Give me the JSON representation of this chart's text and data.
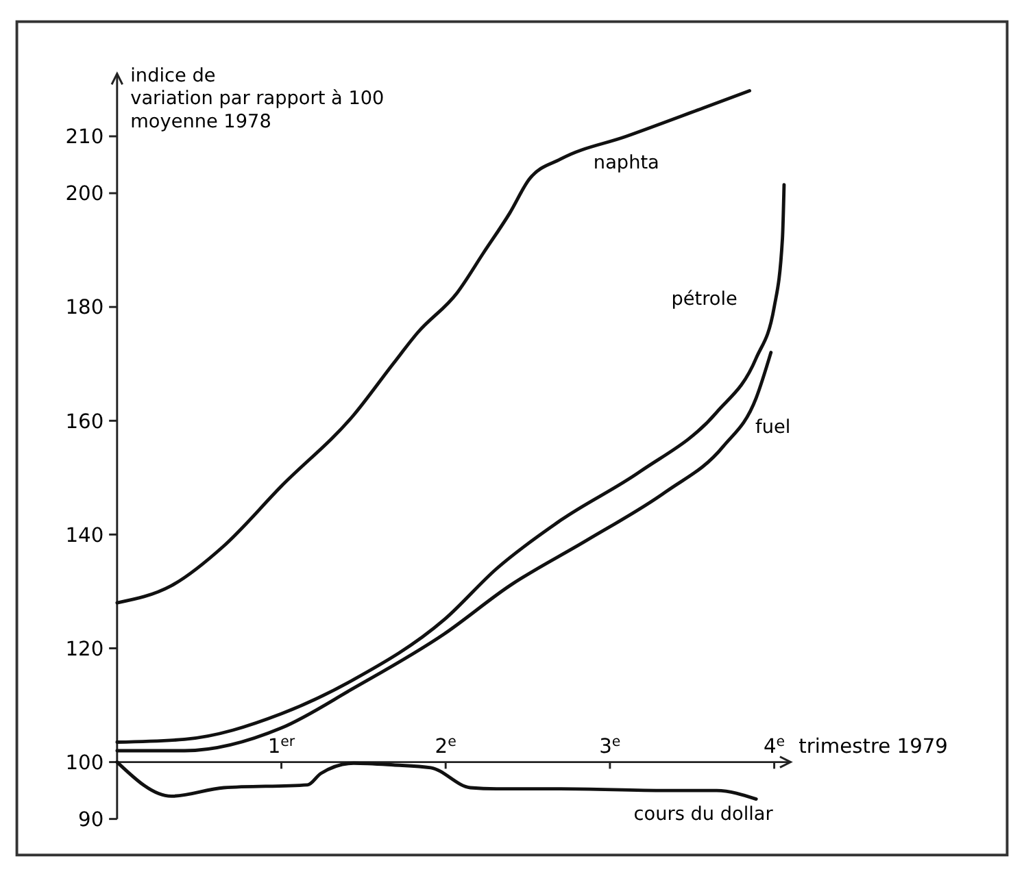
{
  "chart_data": {
    "type": "line",
    "ylabel": "indice de\nvariation par rapport à 100\nmoyenne 1978",
    "xlabel": "trimestre 1979",
    "xlim": [
      0,
      4.1
    ],
    "xticks": [
      {
        "value": 1,
        "label": "1$^{er}$"
      },
      {
        "value": 2,
        "label": "2$^{e}$"
      },
      {
        "value": 3,
        "label": "3$^{e}$"
      },
      {
        "value": 4,
        "label": "4$^{e}$"
      }
    ],
    "ylim": [
      90,
      221
    ],
    "yticks": [
      90,
      100,
      120,
      140,
      160,
      180,
      200,
      210
    ],
    "grid": false,
    "legend": false,
    "marker": "none",
    "line_style": "solid",
    "series": [
      {
        "name": "naphta",
        "color": "#111111",
        "x": [
          0,
          0.33,
          0.65,
          1.0,
          1.44,
          1.68,
          1.83,
          2.07,
          2.23,
          2.39,
          2.51,
          2.7,
          3.1,
          3.57,
          3.85
        ],
        "values": [
          128,
          131,
          138,
          148.5,
          161,
          170,
          175.5,
          182.5,
          189.5,
          196.5,
          202.5,
          206,
          210,
          215,
          218
        ]
      },
      {
        "name": "pétrole",
        "color": "#111111",
        "x": [
          0,
          0.41,
          1.0,
          1.44,
          1.99,
          2.31,
          2.7,
          3.18,
          3.65,
          3.89,
          4.0,
          4.05,
          4.06
        ],
        "values": [
          103.5,
          104,
          108.5,
          114.5,
          125,
          134,
          142.5,
          151,
          161.5,
          171,
          180,
          192,
          201.5
        ]
      },
      {
        "name": "fuel",
        "color": "#111111",
        "x": [
          0,
          0.41,
          1.0,
          1.44,
          1.99,
          2.39,
          2.86,
          3.34,
          3.69,
          3.89,
          3.98
        ],
        "values": [
          102,
          102,
          106,
          113,
          122.5,
          131,
          139,
          147.5,
          155.5,
          164,
          172
        ]
      },
      {
        "name": "cours du dollar",
        "color": "#111111",
        "x": [
          0,
          0.33,
          0.65,
          1.16,
          1.24,
          1.44,
          1.68,
          1.91,
          2.15,
          2.31,
          2.7,
          3.34,
          3.65,
          3.89
        ],
        "values": [
          100,
          94,
          95.5,
          96,
          98,
          99.8,
          99.5,
          99,
          95.5,
          95.3,
          95.3,
          95,
          95,
          93.5
        ]
      }
    ]
  }
}
